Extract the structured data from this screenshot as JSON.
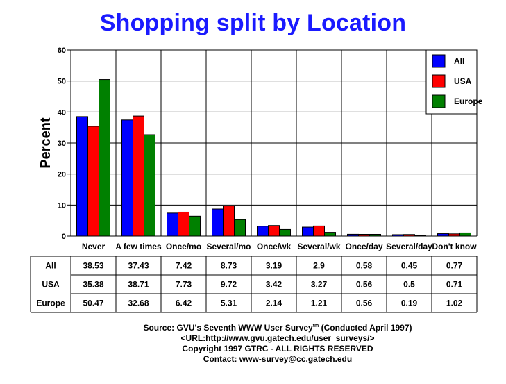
{
  "chart_data": {
    "type": "bar",
    "title": "Shopping split by Location",
    "ylabel": "Percent",
    "xlabel": "",
    "ylim": [
      0,
      60
    ],
    "yticks": [
      0,
      10,
      20,
      30,
      40,
      50,
      60
    ],
    "grid": true,
    "legend_position": "top-right",
    "categories": [
      "Never",
      "A few times",
      "Once/mo",
      "Several/mo",
      "Once/wk",
      "Several/wk",
      "Once/day",
      "Several/day",
      "Don't know"
    ],
    "series": [
      {
        "name": "All",
        "color": "#0000ff",
        "values": [
          38.53,
          37.43,
          7.42,
          8.73,
          3.19,
          2.9,
          0.58,
          0.45,
          0.77
        ]
      },
      {
        "name": "USA",
        "color": "#ff0000",
        "values": [
          35.38,
          38.71,
          7.73,
          9.72,
          3.42,
          3.27,
          0.56,
          0.5,
          0.71
        ]
      },
      {
        "name": "Europe",
        "color": "#008000",
        "values": [
          50.47,
          32.68,
          6.42,
          5.31,
          2.14,
          1.21,
          0.56,
          0.19,
          1.02
        ]
      }
    ],
    "table": {
      "rows": [
        {
          "label": "All",
          "values": [
            "38.53",
            "37.43",
            "7.42",
            "8.73",
            "3.19",
            "2.9",
            "0.58",
            "0.45",
            "0.77"
          ]
        },
        {
          "label": "USA",
          "values": [
            "35.38",
            "38.71",
            "7.73",
            "9.72",
            "3.42",
            "3.27",
            "0.56",
            "0.5",
            "0.71"
          ]
        },
        {
          "label": "Europe",
          "values": [
            "50.47",
            "32.68",
            "6.42",
            "5.31",
            "2.14",
            "1.21",
            "0.56",
            "0.19",
            "1.02"
          ]
        }
      ]
    }
  },
  "footer": {
    "source_prefix": "Source: GVU's Seventh WWW User Survey",
    "source_tm": "tm",
    "source_suffix": " (Conducted April 1997)",
    "url": "<URL:http://www.gvu.gatech.edu/user_surveys/>",
    "copyright": "Copyright 1997 GTRC - ALL RIGHTS RESERVED",
    "contact": "Contact: www-survey@cc.gatech.edu"
  }
}
